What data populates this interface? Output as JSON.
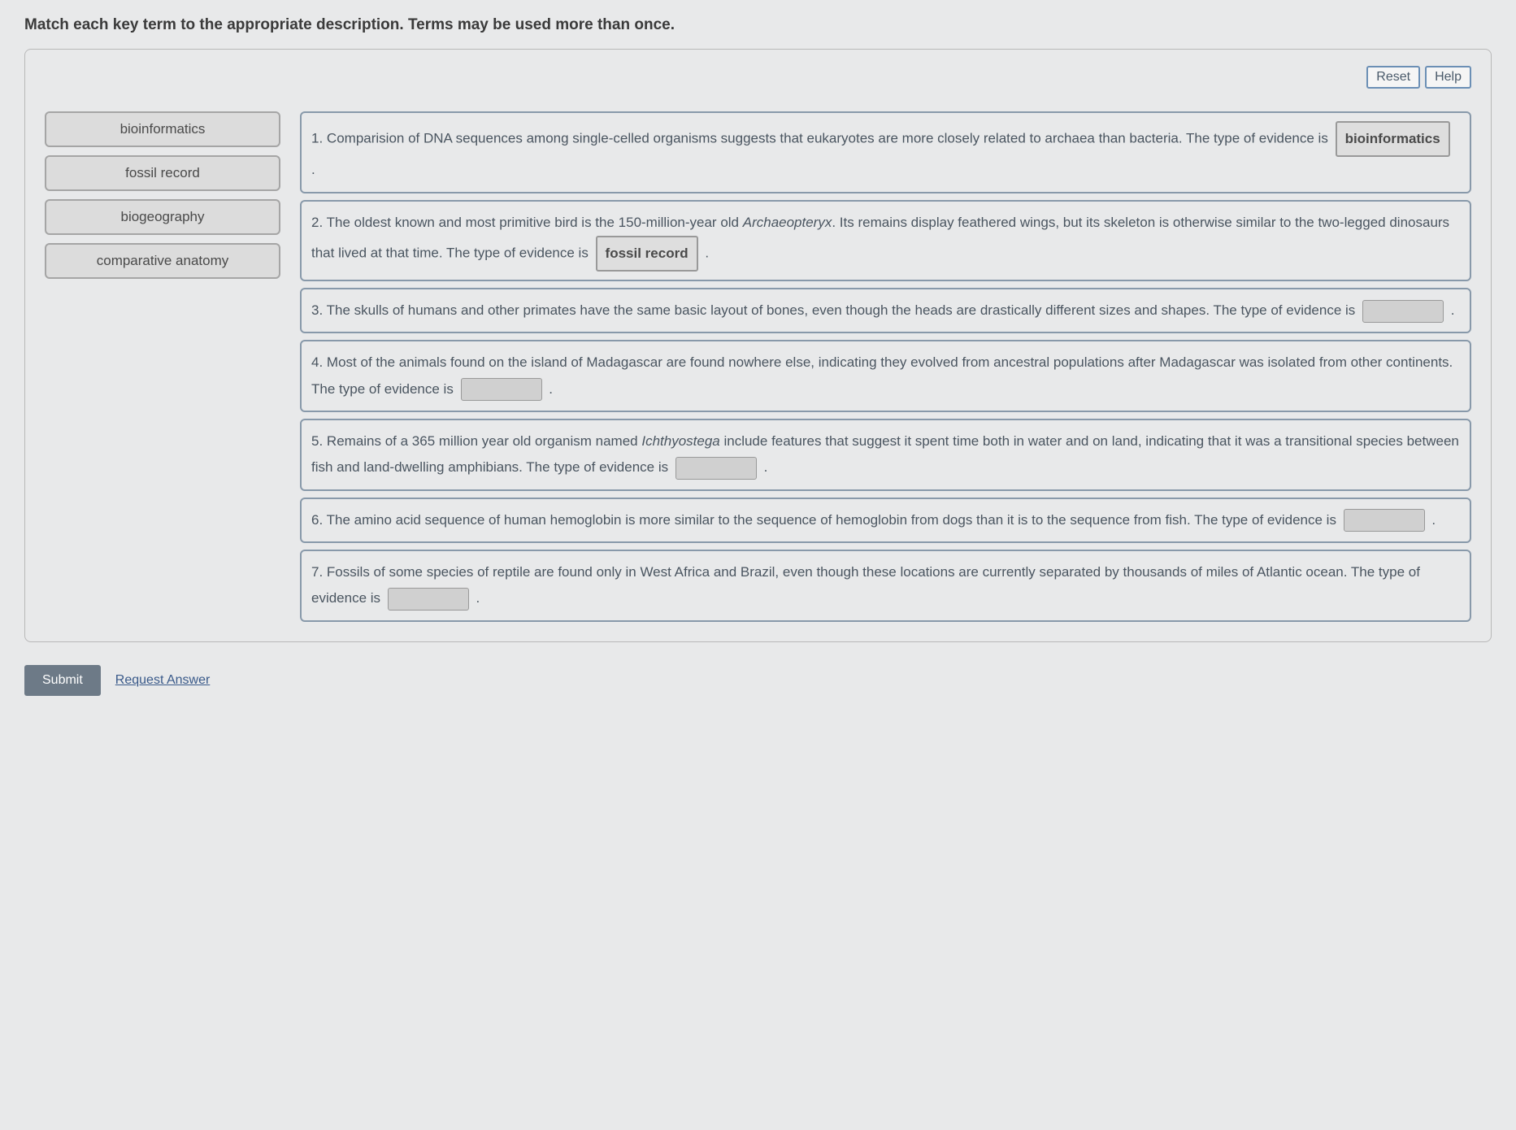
{
  "instructions": "Match each key term to the appropriate description. Terms may be used more than once.",
  "buttons": {
    "reset": "Reset",
    "help": "Help",
    "submit": "Submit",
    "request_answer": "Request Answer"
  },
  "terms": [
    {
      "label": "bioinformatics"
    },
    {
      "label": "fossil record"
    },
    {
      "label": "biogeography"
    },
    {
      "label": "comparative anatomy"
    }
  ],
  "questions": [
    {
      "num": "1.",
      "pre": "Comparision of DNA sequences among single-celled organisms suggests that eukaryotes are more closely related to archaea than bacteria. The type of evidence is ",
      "answer": "bioinformatics",
      "post": "."
    },
    {
      "num": "2.",
      "pre": "The oldest known and most primitive bird is the 150-million-year old ",
      "italic1": "Archaeopteryx",
      "mid": ". Its remains display feathered wings, but its skeleton is otherwise similar to the two-legged dinosaurs that lived at that time. The type of evidence is ",
      "answer": "fossil record",
      "post": "."
    },
    {
      "num": "3.",
      "pre": "The skulls of humans and other primates have the same basic layout of bones, even though the heads are drastically different sizes and shapes. The type of evidence is ",
      "answer": "",
      "post": "."
    },
    {
      "num": "4.",
      "pre": "Most of the animals found on the island of Madagascar are found nowhere else, indicating they evolved from ancestral populations after Madagascar was isolated from other continents. The type of evidence is ",
      "answer": "",
      "post": "."
    },
    {
      "num": "5.",
      "pre": "Remains of a 365 million year old organism named ",
      "italic1": "Ichthyostega",
      "mid": " include features that suggest it spent time both in water and on land, indicating that it was a transitional species between fish and land-dwelling amphibians. The type of evidence is ",
      "answer": "",
      "post": "."
    },
    {
      "num": "6.",
      "pre": "The amino acid sequence of human hemoglobin is more similar to the sequence of hemoglobin from dogs than it is to the sequence from fish. The type of evidence is ",
      "answer": "",
      "post": "."
    },
    {
      "num": "7.",
      "pre": "Fossils of some species of reptile are found only in West Africa and Brazil, even though these locations are currently separated by thousands of miles of Atlantic ocean. The type of evidence is ",
      "answer": "",
      "post": "."
    }
  ]
}
